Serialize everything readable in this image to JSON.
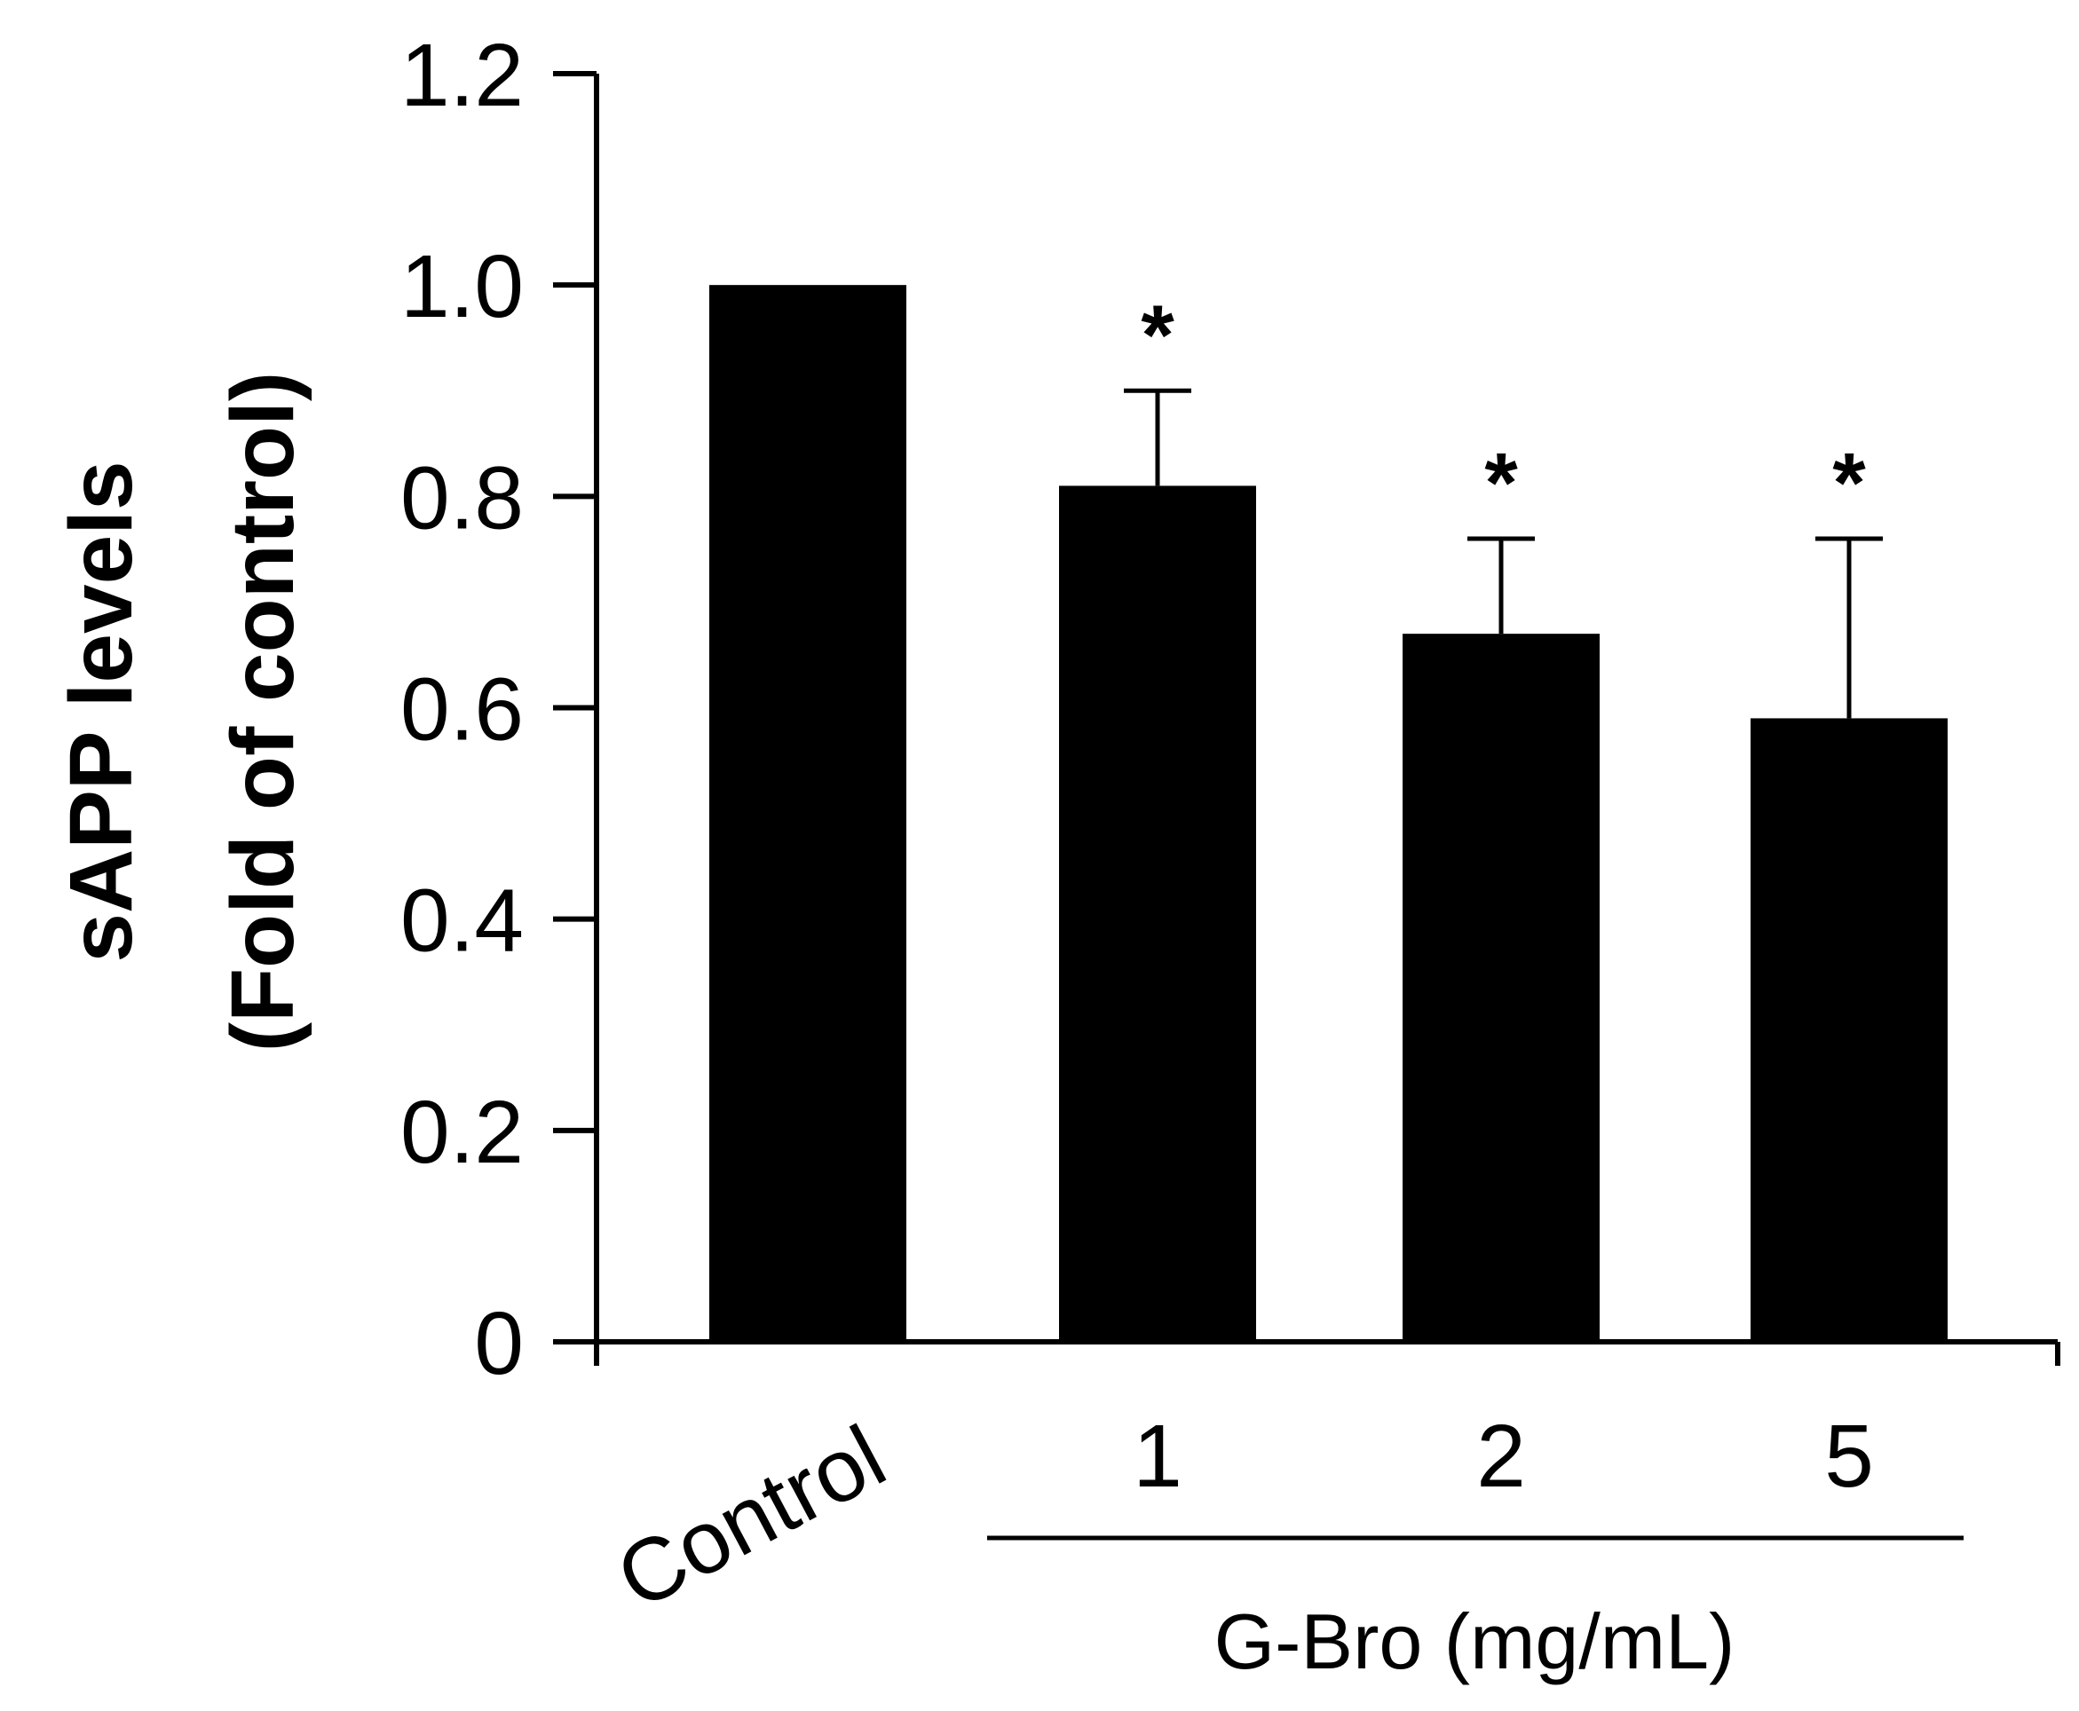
{
  "chart_data": {
    "type": "bar",
    "categories": [
      "Control",
      "1",
      "2",
      "5"
    ],
    "values": [
      1.0,
      0.81,
      0.67,
      0.59
    ],
    "errors": [
      0.0,
      0.09,
      0.09,
      0.17
    ],
    "significance": [
      "",
      "*",
      "*",
      "*"
    ],
    "ylabel_line1": "sAPP levels",
    "ylabel_line2": "(Fold of control)",
    "group_label": "G-Bro (mg/mL)",
    "ylim": [
      0,
      1.2
    ],
    "yticks": [
      0,
      0.2,
      0.4,
      0.6,
      0.8,
      1.0,
      1.2
    ],
    "ytick_labels": [
      "0",
      "0.2",
      "0.4",
      "0.6",
      "0.8",
      "1.0",
      "1.2"
    ],
    "bar_color": "#000000",
    "grid": false
  }
}
